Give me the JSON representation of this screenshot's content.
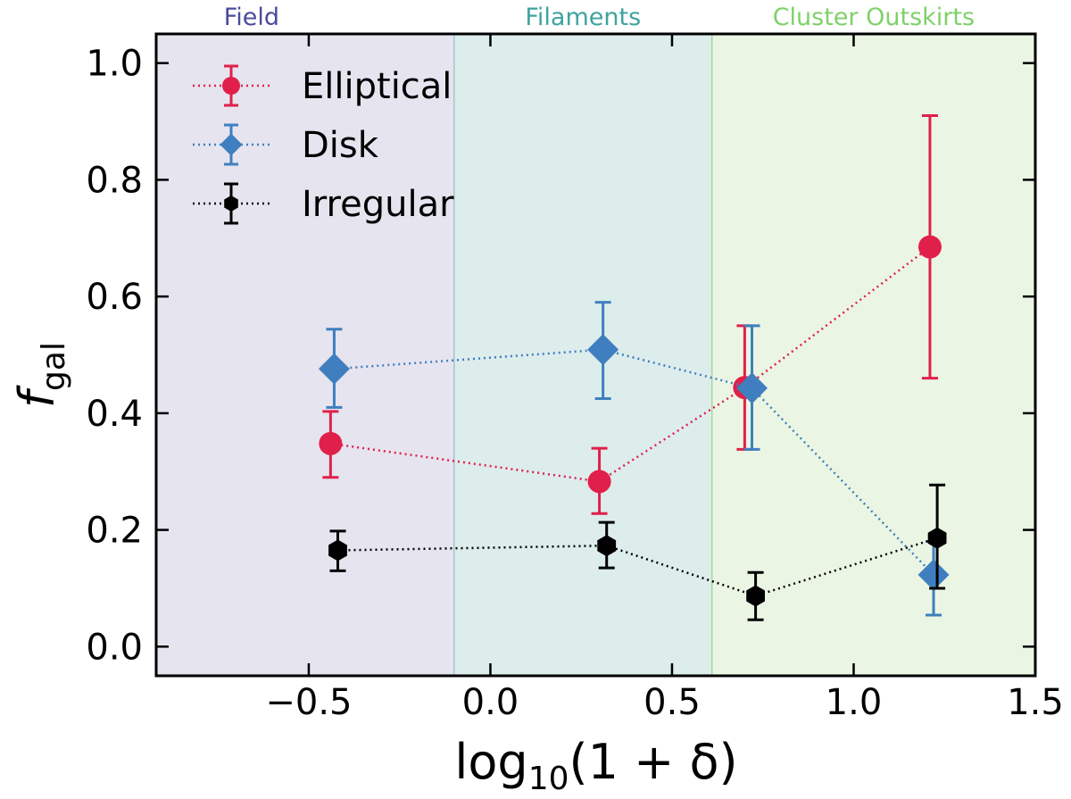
{
  "chart_data": {
    "type": "scatter",
    "xlabel": "log10(1 + δ)",
    "ylabel": "f_gal",
    "xlim": [
      -0.92,
      1.5
    ],
    "ylim": [
      -0.05,
      1.05
    ],
    "xticks": [
      -0.5,
      0.0,
      0.5,
      1.0,
      1.5
    ],
    "xtick_labels": [
      "−0.5",
      "0.0",
      "0.5",
      "1.0",
      "1.5"
    ],
    "yticks": [
      0.0,
      0.2,
      0.4,
      0.6,
      0.8,
      1.0
    ],
    "ytick_labels": [
      "0.0",
      "0.2",
      "0.4",
      "0.6",
      "0.8",
      "1.0"
    ],
    "regions": [
      {
        "name": "Field",
        "x_range": [
          -0.92,
          -0.1
        ],
        "fill": "#e6e4ef",
        "text_color": "#4b4b9c"
      },
      {
        "name": "Filaments",
        "x_range": [
          -0.1,
          0.61
        ],
        "fill": "#ddedec",
        "text_color": "#3fa3a0"
      },
      {
        "name": "Cluster Outskirts",
        "x_range": [
          0.61,
          1.5
        ],
        "fill": "#eaf6e3",
        "text_color": "#7fd16a"
      }
    ],
    "series": [
      {
        "name": "Elliptical",
        "color": "#e0204a",
        "marker": "circle",
        "x": [
          -0.44,
          0.3,
          0.7,
          1.21
        ],
        "y": [
          0.348,
          0.283,
          0.444,
          0.685
        ],
        "yerr_low": [
          0.29,
          0.228,
          0.338,
          0.46
        ],
        "yerr_high": [
          0.403,
          0.34,
          0.55,
          0.91
        ]
      },
      {
        "name": "Disk",
        "color": "#3f7fbf",
        "marker": "diamond",
        "x": [
          -0.43,
          0.31,
          0.72,
          1.22
        ],
        "y": [
          0.476,
          0.509,
          0.443,
          0.123
        ],
        "yerr_low": [
          0.41,
          0.425,
          0.338,
          0.054
        ],
        "yerr_high": [
          0.544,
          0.59,
          0.55,
          0.18
        ]
      },
      {
        "name": "Irregular",
        "color": "#000000",
        "marker": "hexagon",
        "x": [
          -0.42,
          0.32,
          0.73,
          1.23
        ],
        "y": [
          0.165,
          0.173,
          0.087,
          0.186
        ],
        "yerr_low": [
          0.13,
          0.135,
          0.046,
          0.1
        ],
        "yerr_high": [
          0.198,
          0.213,
          0.127,
          0.277
        ]
      }
    ]
  }
}
